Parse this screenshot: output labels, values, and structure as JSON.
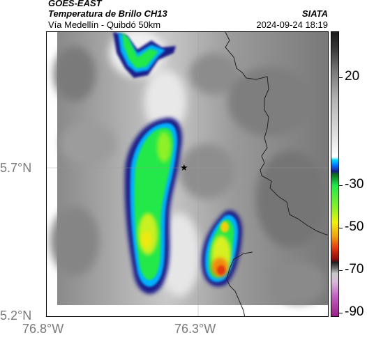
{
  "header": {
    "satellite": "GOES-EAST",
    "product": "Temperatura de Brillo CH13",
    "region": "Vía Medellín - Quibdó 50km",
    "source": "SIATA",
    "timestamp": "2024-09-24 18:19"
  },
  "axes": {
    "lat_labels": [
      "5.7°N",
      "5.2°N"
    ],
    "lon_labels": [
      "76.8°W",
      "76.3°W"
    ]
  },
  "colorbar": {
    "labels": [
      "20",
      "-30",
      "-50",
      "-70",
      "-90"
    ]
  }
}
